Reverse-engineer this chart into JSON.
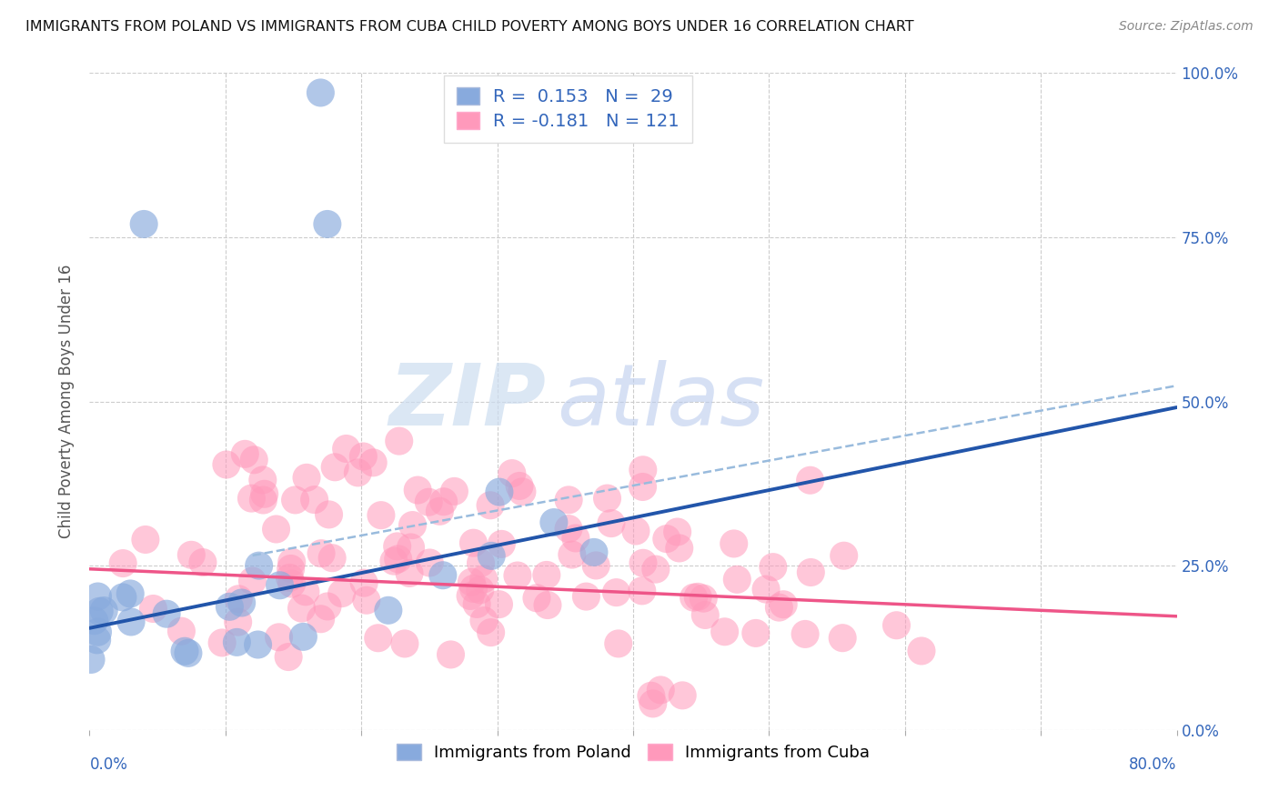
{
  "title": "IMMIGRANTS FROM POLAND VS IMMIGRANTS FROM CUBA CHILD POVERTY AMONG BOYS UNDER 16 CORRELATION CHART",
  "source": "Source: ZipAtlas.com",
  "ylabel": "Child Poverty Among Boys Under 16",
  "yticks": [
    "0.0%",
    "25.0%",
    "50.0%",
    "75.0%",
    "100.0%"
  ],
  "ytick_vals": [
    0.0,
    0.25,
    0.5,
    0.75,
    1.0
  ],
  "xlim": [
    0.0,
    0.8
  ],
  "ylim": [
    0.0,
    1.0
  ],
  "R_poland": 0.153,
  "N_poland": 29,
  "R_cuba": -0.181,
  "N_cuba": 121,
  "color_poland": "#88AADD",
  "color_cuba": "#FF99BB",
  "trendline_color_poland": "#2255AA",
  "trendline_color_cuba": "#EE5588",
  "dashed_line_color": "#99BBDD",
  "background_color": "#FFFFFF",
  "watermark_color": "#DDEEFF",
  "legend_label_poland": "Immigrants from Poland",
  "legend_label_cuba": "Immigrants from Cuba",
  "grid_color": "#CCCCCC",
  "title_color": "#111111",
  "source_color": "#888888",
  "ytick_color": "#3366BB",
  "ylabel_color": "#555555"
}
